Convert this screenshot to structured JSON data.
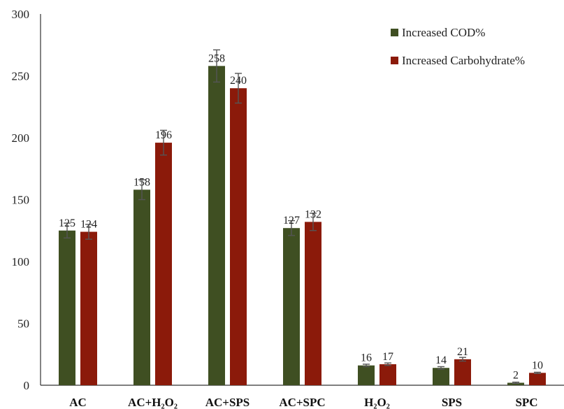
{
  "chart_data": {
    "type": "bar",
    "title": "",
    "xlabel": "",
    "ylabel": "",
    "ylim": [
      0,
      300
    ],
    "yticks": [
      0,
      50,
      100,
      150,
      200,
      250,
      300
    ],
    "grid": false,
    "legend_position": "top-right",
    "categories": [
      "AC",
      "AC+H₂O₂",
      "AC+SPS",
      "AC+SPC",
      "H₂O₂",
      "SPS",
      "SPC"
    ],
    "series": [
      {
        "name": "Increased COD%",
        "color": "#3f4f22",
        "values": [
          125,
          158,
          258,
          127,
          16,
          14,
          2
        ],
        "errors": [
          6,
          8,
          13,
          6,
          1,
          1,
          0.5
        ]
      },
      {
        "name": "Increased Carbohydrate%",
        "color": "#8b1a0a",
        "values": [
          124,
          196,
          240,
          132,
          17,
          21,
          10
        ],
        "errors": [
          6,
          10,
          12,
          7,
          1,
          1.5,
          0.5
        ]
      }
    ]
  }
}
